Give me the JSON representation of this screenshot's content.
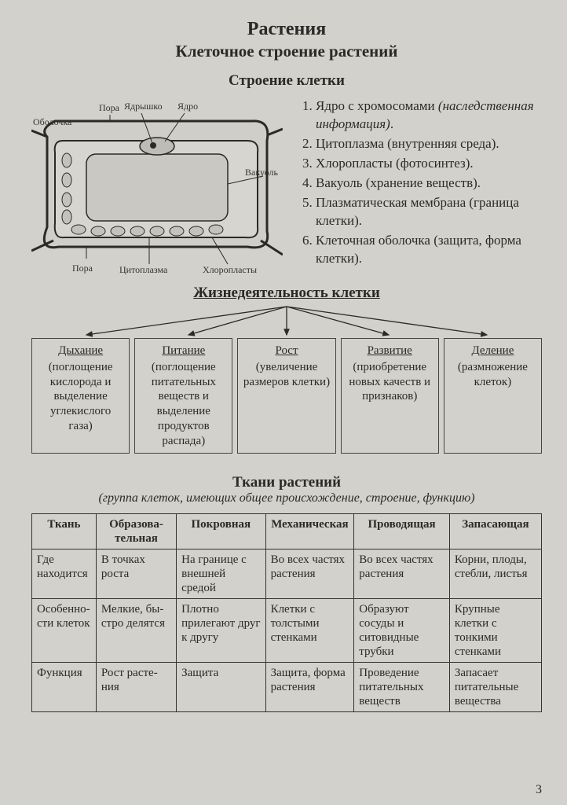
{
  "title": "Растения",
  "subtitle": "Клеточное строение растений",
  "structure_heading": "Строение клетки",
  "cell_labels": {
    "obolochka": "Оболочка",
    "pora_top": "Пора",
    "yadryshko": "Ядрышко",
    "yadro": "Ядро",
    "vakuol": "Вакуоль",
    "pora_bottom": "Пора",
    "citoplazma": "Цитоплазма",
    "hloroplasty": "Хлоропласты"
  },
  "structure_items": [
    "Ядро с хромосомами <span class=\"italic\">(наследственная информация)</span>.",
    "Цитоплазма (внутренняя среда).",
    "Хлоропласты (фотосинтез).",
    "Вакуоль (хранение веществ).",
    "Плазматическая мембрана (граница клетки).",
    "Клеточная оболочка (защита, форма клетки)."
  ],
  "life_heading": "Жизнедеятельность клетки",
  "life_boxes": [
    {
      "title": "Дыхание",
      "desc": "(поглощение кислорода и выделение углекислого газа)"
    },
    {
      "title": "Питание",
      "desc": "(поглощение питательных веществ и выделение продуктов распада)"
    },
    {
      "title": "Рост",
      "desc": "(увеличение размеров клетки)"
    },
    {
      "title": "Развитие",
      "desc": "(приобретение новых качеств и признаков)"
    },
    {
      "title": "Деление",
      "desc": "(размножение клеток)"
    }
  ],
  "tissue_heading": "Ткани растений",
  "tissue_subheading": "(группа клеток, имеющих общее происхождение, строение, функцию)",
  "tissue_table": {
    "headers": [
      "Ткань",
      "Образова­тельная",
      "Покров­ная",
      "Механиче­ская",
      "Проводя­щая",
      "Запасаю­щая"
    ],
    "rows": [
      [
        "Где находи­тся",
        "В точках роста",
        "На границе с внешней средой",
        "Во всех час­тях растения",
        "Во всех частях растения",
        "Корни, плоды, стебли, ли­стья"
      ],
      [
        "Осо­бенно­сти клеток",
        "Мелкие, бы­стро делятся",
        "Плотно прилегают друг к дру­гу",
        "Клетки с толстыми стенками",
        "Образуют сосуды и ситовид­ные трубки",
        "Крупные клетки с тонкими стенками"
      ],
      [
        "Функ­ция",
        "Рост расте­ния",
        "Защита",
        "Защита, форма рас­тения",
        "Проведе­ние пита­тельных веществ",
        "Запасает питатель­ные веще­ства"
      ]
    ]
  },
  "page_number": "3",
  "colors": {
    "page_bg": "#d2d1cb",
    "border": "#333333",
    "text": "#2a2a28"
  }
}
